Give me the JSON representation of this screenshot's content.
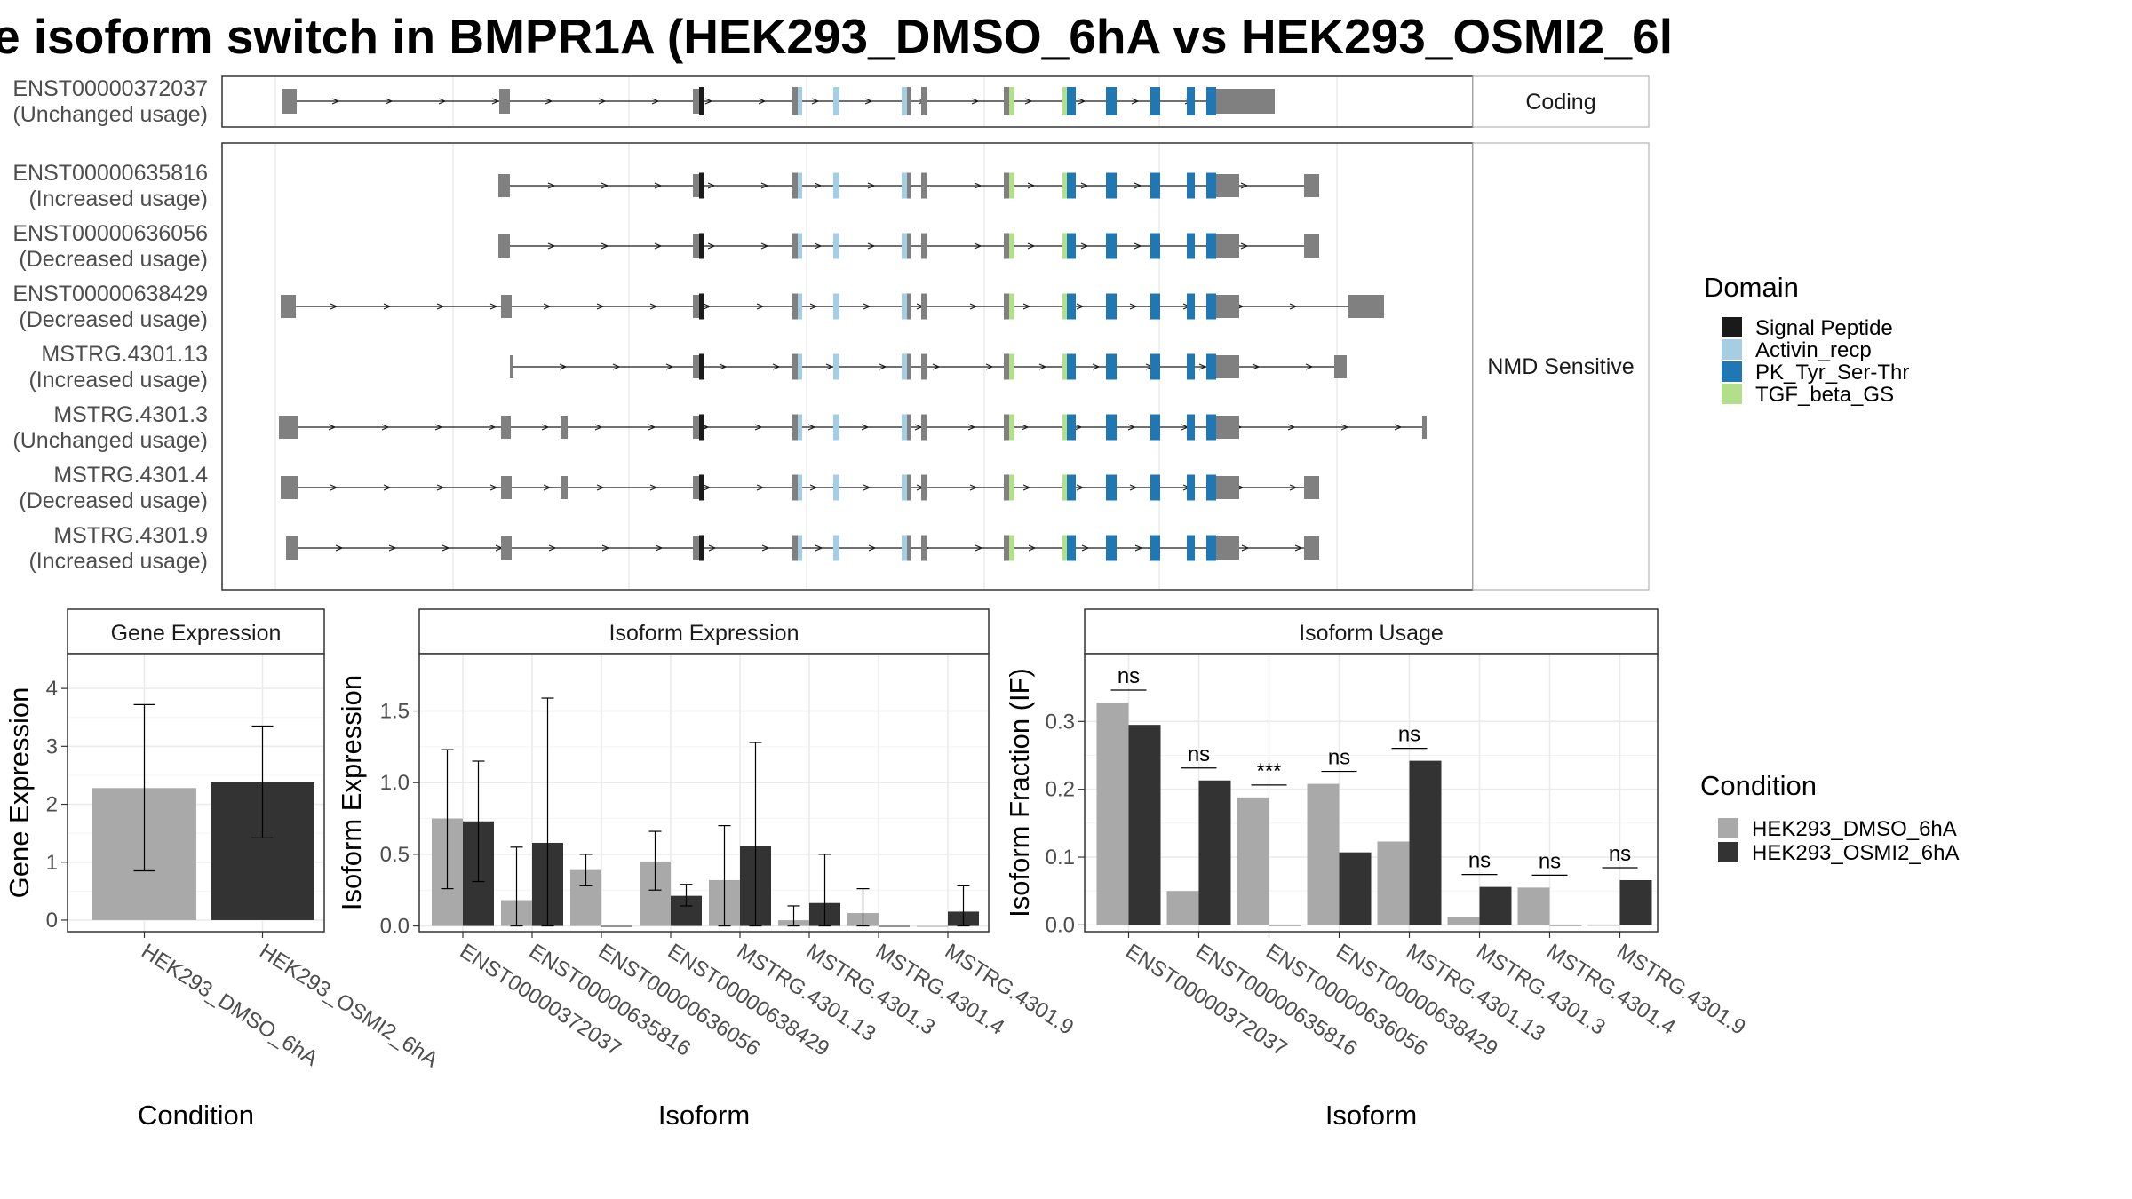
{
  "title": "e isoform switch in BMPR1A (HEK293_DMSO_6hA vs HEK293_OSMI2_6l",
  "colors": {
    "signal_peptide": "#1a1a1a",
    "activin_recp": "#a6cee3",
    "pk_tyr_ser_thr": "#1f78b4",
    "tgf_beta_gs": "#b2df8a",
    "utr": "#808080",
    "dmso": "#a9a9a9",
    "osmi2": "#333333"
  },
  "transcripts": {
    "coding_strip": "Coding",
    "nmd_strip": "NMD Sensitive",
    "coding": [
      {
        "id": "ENST00000372037",
        "usage": "(Unchanged usage)"
      }
    ],
    "nmd": [
      {
        "id": "ENST00000635816",
        "usage": "(Increased usage)"
      },
      {
        "id": "ENST00000636056",
        "usage": "(Decreased usage)"
      },
      {
        "id": "ENST00000638429",
        "usage": "(Decreased usage)"
      },
      {
        "id": "MSTRG.4301.13",
        "usage": "(Increased usage)"
      },
      {
        "id": "MSTRG.4301.3",
        "usage": "(Unchanged usage)"
      },
      {
        "id": "MSTRG.4301.4",
        "usage": "(Decreased usage)"
      },
      {
        "id": "MSTRG.4301.9",
        "usage": "(Increased usage)"
      }
    ]
  },
  "domain_legend": {
    "title": "Domain",
    "items": [
      {
        "label": "Signal Peptide",
        "color": "#1a1a1a"
      },
      {
        "label": "Activin_recp",
        "color": "#a6cee3"
      },
      {
        "label": "PK_Tyr_Ser-Thr",
        "color": "#1f78b4"
      },
      {
        "label": "TGF_beta_GS",
        "color": "#b2df8a"
      }
    ]
  },
  "condition_legend": {
    "title": "Condition",
    "items": [
      {
        "label": "HEK293_DMSO_6hA",
        "color": "#a9a9a9"
      },
      {
        "label": "HEK293_OSMI2_6hA",
        "color": "#333333"
      }
    ]
  },
  "chart_data": [
    {
      "type": "bar",
      "panel": "Gene Expression",
      "categories": [
        "HEK293_DMSO_6hA",
        "HEK293_OSMI2_6hA"
      ],
      "values": [
        2.28,
        2.38
      ],
      "error_low": [
        0.85,
        1.42
      ],
      "error_high": [
        3.72,
        3.35
      ],
      "xlabel": "Condition",
      "ylabel": "Gene Expression",
      "ylim": [
        -0.2,
        4.6
      ],
      "yticks": [
        0,
        1,
        2,
        3,
        4
      ],
      "grid": true
    },
    {
      "type": "bar",
      "panel": "Isoform Expression",
      "categories": [
        "ENST00000372037",
        "ENST00000635816",
        "ENST00000636056",
        "ENST00000638429",
        "MSTRG.4301.13",
        "MSTRG.4301.3",
        "MSTRG.4301.4",
        "MSTRG.4301.9"
      ],
      "series": [
        {
          "name": "HEK293_DMSO_6hA",
          "values": [
            0.75,
            0.18,
            0.39,
            0.45,
            0.32,
            0.04,
            0.09,
            0.0
          ],
          "error_low": [
            0.26,
            0.0,
            0.28,
            0.25,
            0.0,
            0.0,
            0.0,
            0.0
          ],
          "error_high": [
            1.23,
            0.55,
            0.5,
            0.66,
            0.7,
            0.14,
            0.26,
            0.0
          ]
        },
        {
          "name": "HEK293_OSMI2_6hA",
          "values": [
            0.73,
            0.58,
            0.0,
            0.21,
            0.56,
            0.16,
            0.0,
            0.1
          ],
          "error_low": [
            0.31,
            0.0,
            0.0,
            0.14,
            0.0,
            0.0,
            0.0,
            0.0
          ],
          "error_high": [
            1.15,
            1.59,
            0.0,
            0.29,
            1.28,
            0.5,
            0.0,
            0.28
          ]
        }
      ],
      "xlabel": "Isoform",
      "ylabel": "Isoform Expression",
      "ylim": [
        -0.04,
        1.9
      ],
      "yticks": [
        0.0,
        0.5,
        1.0,
        1.5
      ],
      "ytick_labels": [
        "0.0",
        "0.5",
        "1.0",
        "1.5"
      ],
      "grid": true
    },
    {
      "type": "bar",
      "panel": "Isoform Usage",
      "categories": [
        "ENST00000372037",
        "ENST00000635816",
        "ENST00000636056",
        "ENST00000638429",
        "MSTRG.4301.13",
        "MSTRG.4301.3",
        "MSTRG.4301.4",
        "MSTRG.4301.9"
      ],
      "series": [
        {
          "name": "HEK293_DMSO_6hA",
          "values": [
            0.328,
            0.05,
            0.188,
            0.208,
            0.123,
            0.012,
            0.055,
            0.0
          ]
        },
        {
          "name": "HEK293_OSMI2_6hA",
          "values": [
            0.295,
            0.213,
            0.0,
            0.107,
            0.242,
            0.056,
            0.0,
            0.066
          ]
        }
      ],
      "significance": [
        "ns",
        "ns",
        "***",
        "ns",
        "ns",
        "ns",
        "ns",
        "ns"
      ],
      "xlabel": "Isoform",
      "ylabel": "Isoform Fraction (IF)",
      "ylim": [
        -0.01,
        0.4
      ],
      "yticks": [
        0.0,
        0.1,
        0.2,
        0.3
      ],
      "ytick_labels": [
        "0.0",
        "0.1",
        "0.2",
        "0.3"
      ],
      "grid": true
    }
  ]
}
